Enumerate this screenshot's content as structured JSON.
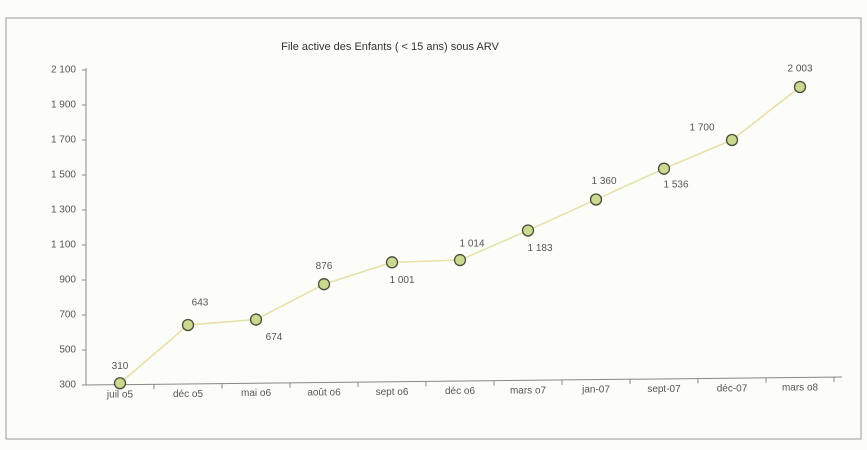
{
  "chart_data": {
    "type": "line",
    "title": "File active des Enfants ( < 15 ans) sous ARV",
    "categories": [
      "juil o5",
      "déc o5",
      "mai o6",
      "août o6",
      "sept o6",
      "déc o6",
      "mars o7",
      "jan-07",
      "sept-07",
      "déc-07",
      "mars o8"
    ],
    "series": [
      {
        "color": "#e6dfa6",
        "marker_color": "#c9d98f",
        "values": [
          310,
          643,
          674,
          876,
          1001,
          1014,
          1183,
          1360,
          1536,
          1700,
          2003
        ],
        "value_labels": [
          "310",
          "643",
          "674",
          "876",
          "1 001",
          "1 014",
          "1 183",
          "1 360",
          "1 536",
          "1 700",
          "2 003"
        ]
      }
    ],
    "ylim": [
      300,
      2100
    ],
    "yticks": [
      300,
      500,
      700,
      900,
      {
        "value": 1100,
        "label": "1 100"
      },
      {
        "value": 1300,
        "label": "1 300"
      },
      {
        "value": 1500,
        "label": "1 500"
      },
      {
        "value": 1700,
        "label": "1 700"
      },
      {
        "value": 1900,
        "label": "1 900"
      },
      {
        "value": 2100,
        "label": "2 100"
      }
    ],
    "grid": false
  }
}
